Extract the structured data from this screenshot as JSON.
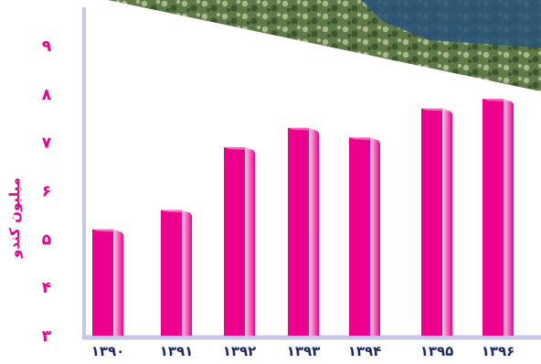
{
  "chart_data": {
    "type": "bar",
    "categories": [
      "۱۳۹۰",
      "۱۳۹۱",
      "۱۳۹۲",
      "۱۳۹۳",
      "۱۳۹۴",
      "۱۳۹۵",
      "۱۳۹۶"
    ],
    "values": [
      5.2,
      5.6,
      6.9,
      7.3,
      7.1,
      7.7,
      7.9
    ],
    "ylabel": "میلیون کندو",
    "ylim": [
      3,
      9
    ],
    "yticks": [
      3,
      4,
      5,
      6,
      7,
      8,
      9
    ],
    "ytick_labels": [
      "۳",
      "۴",
      "۵",
      "۶",
      "۷",
      "۸",
      "۹"
    ],
    "grid": false,
    "legend": "none"
  },
  "colors": {
    "bar_front": "#ec008c",
    "bar_side_light": "#fbd1ea",
    "bar_top": "#f8a8d6",
    "axis": "#c8c6e6",
    "tick_text": "#ec008c",
    "category_text": "#1f2a6b",
    "photo_foliage": "#5f7a48",
    "photo_deep": "#3d5531",
    "photo_light": "#a9b98c",
    "photo_blue": "#28527a"
  },
  "background_photo": {
    "icon": "beehives-in-field-photo"
  }
}
